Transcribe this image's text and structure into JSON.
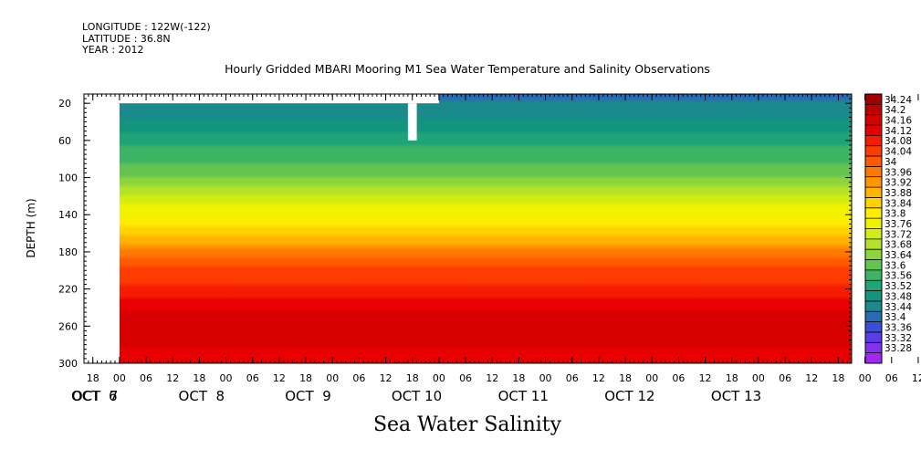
{
  "header": {
    "longitude": "LONGITUDE : 122W(-122)",
    "latitude": "LATITUDE : 36.8N",
    "year": "YEAR : 2012"
  },
  "chart_data": {
    "type": "heatmap",
    "title": "Hourly Gridded MBARI Mooring M1 Sea Water Temperature and Salinity Observations",
    "subtitle": "Sea Water Salinity",
    "ylabel": "DEPTH (m)",
    "xlabel": "",
    "y_axis": {
      "range": [
        10,
        300
      ],
      "reversed": true,
      "ticks": [
        20,
        60,
        100,
        140,
        180,
        220,
        260,
        300
      ]
    },
    "x_axis": {
      "range": [
        "2012-10-06T16:00",
        "2012-10-13T21:00"
      ],
      "hour_ticks": [
        "18",
        "00",
        "06",
        "12",
        "18",
        "00",
        "06",
        "12",
        "18",
        "00",
        "06",
        "12",
        "18",
        "00",
        "06",
        "12",
        "18",
        "00",
        "06",
        "12",
        "18",
        "00",
        "06",
        "12",
        "18",
        "00",
        "06",
        "12",
        "18",
        "00",
        "06",
        "12"
      ],
      "date_labels": [
        "OCT  6",
        "OCT  7",
        "OCT  8",
        "OCT  9",
        "OCT 10",
        "OCT 11",
        "OCT 12",
        "OCT 13"
      ]
    },
    "colorbar": {
      "labels": [
        "34.24",
        "34.2",
        "34.16",
        "34.12",
        "34.08",
        "34.04",
        "34",
        "33.96",
        "33.92",
        "33.88",
        "33.84",
        "33.8",
        "33.76",
        "33.72",
        "33.68",
        "33.64",
        "33.6",
        "33.56",
        "33.52",
        "33.48",
        "33.44",
        "33.4",
        "33.36",
        "33.32",
        "33.28"
      ],
      "colors": [
        "#a00000",
        "#be0000",
        "#d60000",
        "#e80000",
        "#f61c00",
        "#fc3c00",
        "#ff5a00",
        "#ff7800",
        "#ff9600",
        "#ffb400",
        "#ffd200",
        "#ffee00",
        "#f0f200",
        "#d2ec14",
        "#b4e228",
        "#8cd43c",
        "#64c450",
        "#3cb464",
        "#1ea478",
        "#12947e",
        "#1a8a8c",
        "#2a6cb4",
        "#3850d8",
        "#5a3ce8",
        "#8232ec",
        "#a028f0"
      ]
    },
    "depth_profile": [
      {
        "depth": 10,
        "value": 33.44
      },
      {
        "depth": 40,
        "value": 33.5
      },
      {
        "depth": 70,
        "value": 33.58
      },
      {
        "depth": 100,
        "value": 33.64
      },
      {
        "depth": 130,
        "value": 33.76
      },
      {
        "depth": 160,
        "value": 33.86
      },
      {
        "depth": 180,
        "value": 33.96
      },
      {
        "depth": 200,
        "value": 34.04
      },
      {
        "depth": 230,
        "value": 34.1
      },
      {
        "depth": 260,
        "value": 34.18
      },
      {
        "depth": 300,
        "value": 34.12
      }
    ],
    "data_start": "2012-10-07T00:00",
    "missing_blocks": [
      {
        "t0": "2012-10-07T00:00",
        "t1": "2012-10-10T00:00",
        "d0": 10,
        "d1": 20
      },
      {
        "t0": "2012-10-09T17:00",
        "t1": "2012-10-09T19:00",
        "d0": 20,
        "d1": 60
      }
    ]
  }
}
